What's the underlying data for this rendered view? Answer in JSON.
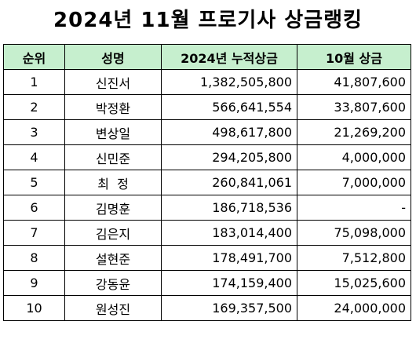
{
  "title": "2024년 11월 프로기사 상금랭킹",
  "headers": {
    "rank": "순위",
    "name": "성명",
    "total": "2024년 누적상금",
    "october": "10월 상금"
  },
  "rows": [
    {
      "rank": "1",
      "name": "신진서",
      "total": "1,382,505,800",
      "october": "41,807,600"
    },
    {
      "rank": "2",
      "name": "박정환",
      "total": "566,641,554",
      "october": "33,807,600"
    },
    {
      "rank": "3",
      "name": "변상일",
      "total": "498,617,800",
      "october": "21,269,200"
    },
    {
      "rank": "4",
      "name": "신민준",
      "total": "294,205,800",
      "october": "4,000,000"
    },
    {
      "rank": "5",
      "name": "최  정",
      "total": "260,841,061",
      "october": "7,000,000"
    },
    {
      "rank": "6",
      "name": "김명훈",
      "total": "186,718,536",
      "october": "-"
    },
    {
      "rank": "7",
      "name": "김은지",
      "total": "183,014,400",
      "october": "75,098,000"
    },
    {
      "rank": "8",
      "name": "설현준",
      "total": "178,491,700",
      "october": "7,512,800"
    },
    {
      "rank": "9",
      "name": "강동윤",
      "total": "174,159,400",
      "october": "15,025,600"
    },
    {
      "rank": "10",
      "name": "원성진",
      "total": "169,357,500",
      "october": "24,000,000"
    }
  ],
  "colors": {
    "header_background": "#c6efce",
    "border": "#000000"
  }
}
